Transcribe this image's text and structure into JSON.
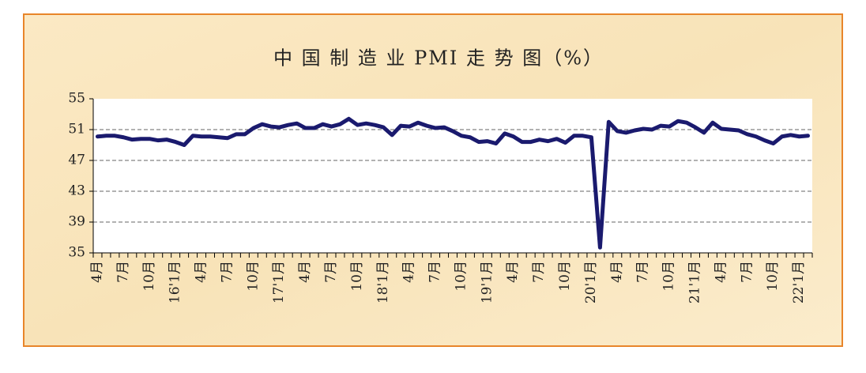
{
  "chart_data": {
    "type": "line",
    "title": "中 国 制 造 业 PMI 走 势 图（%）",
    "categories": [
      "4月",
      null,
      null,
      "7月",
      null,
      null,
      "10月",
      null,
      null,
      "16'1月",
      null,
      null,
      "4月",
      null,
      null,
      "7月",
      null,
      null,
      "10月",
      null,
      null,
      "17'1月",
      null,
      null,
      "4月",
      null,
      null,
      "7月",
      null,
      null,
      "10月",
      null,
      null,
      "18'1月",
      null,
      null,
      "4月",
      null,
      null,
      "7月",
      null,
      null,
      "10月",
      null,
      null,
      "19'1月",
      null,
      null,
      "4月",
      null,
      null,
      "7月",
      null,
      null,
      "10月",
      null,
      null,
      "20'1月",
      null,
      null,
      "4月",
      null,
      null,
      "7月",
      null,
      null,
      "10月",
      null,
      null,
      "21'1月",
      null,
      null,
      "4月",
      null,
      null,
      "7月",
      null,
      null,
      "10月",
      null,
      null,
      "22'1月",
      null
    ],
    "values": [
      50.1,
      50.2,
      50.2,
      50.0,
      49.7,
      49.8,
      49.8,
      49.6,
      49.7,
      49.4,
      49.0,
      50.2,
      50.1,
      50.1,
      50.0,
      49.9,
      50.4,
      50.4,
      51.2,
      51.7,
      51.4,
      51.3,
      51.6,
      51.8,
      51.2,
      51.2,
      51.7,
      51.4,
      51.7,
      52.4,
      51.6,
      51.8,
      51.6,
      51.3,
      50.3,
      51.5,
      51.4,
      51.9,
      51.5,
      51.2,
      51.3,
      50.8,
      50.2,
      50.0,
      49.4,
      49.5,
      49.2,
      50.5,
      50.1,
      49.4,
      49.4,
      49.7,
      49.5,
      49.8,
      49.3,
      50.2,
      50.2,
      50.0,
      35.7,
      52.0,
      50.8,
      50.6,
      50.9,
      51.1,
      51.0,
      51.5,
      51.4,
      52.1,
      51.9,
      51.3,
      50.6,
      51.9,
      51.1,
      51.0,
      50.9,
      50.4,
      50.1,
      49.6,
      49.2,
      50.1,
      50.3,
      50.1,
      50.2
    ],
    "color": "#1a1a6e",
    "ylim": [
      35,
      55
    ],
    "yticks": [
      35,
      39,
      43,
      47,
      51,
      55
    ],
    "grid": true
  }
}
